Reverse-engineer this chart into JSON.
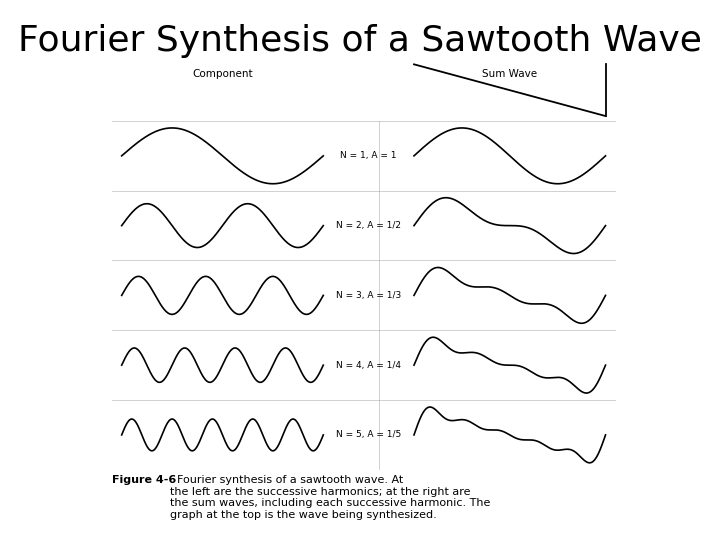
{
  "title": "Fourier Synthesis of a Sawtooth Wave",
  "title_fontsize": 26,
  "bg_color": "#ffffff",
  "diagram_bg": "#d8d8d8",
  "labels": [
    "N = 1, A = 1",
    "N = 2, A = 1/2",
    "N = 3, A = 1/3",
    "N = 4, A = 1/4",
    "N = 5, A = 1/5"
  ],
  "harmonics": [
    1,
    2,
    3,
    4,
    5
  ],
  "col_headers": [
    "Component",
    "Sum Wave"
  ],
  "caption_bold": "Figure 4-6",
  "caption_text": "  Fourier synthesis of a sawtooth wave. At\nthe left are the successive harmonics; at the right are\nthe sum waves, including each successive harmonic. The\ngraph at the top is the wave being synthesized."
}
